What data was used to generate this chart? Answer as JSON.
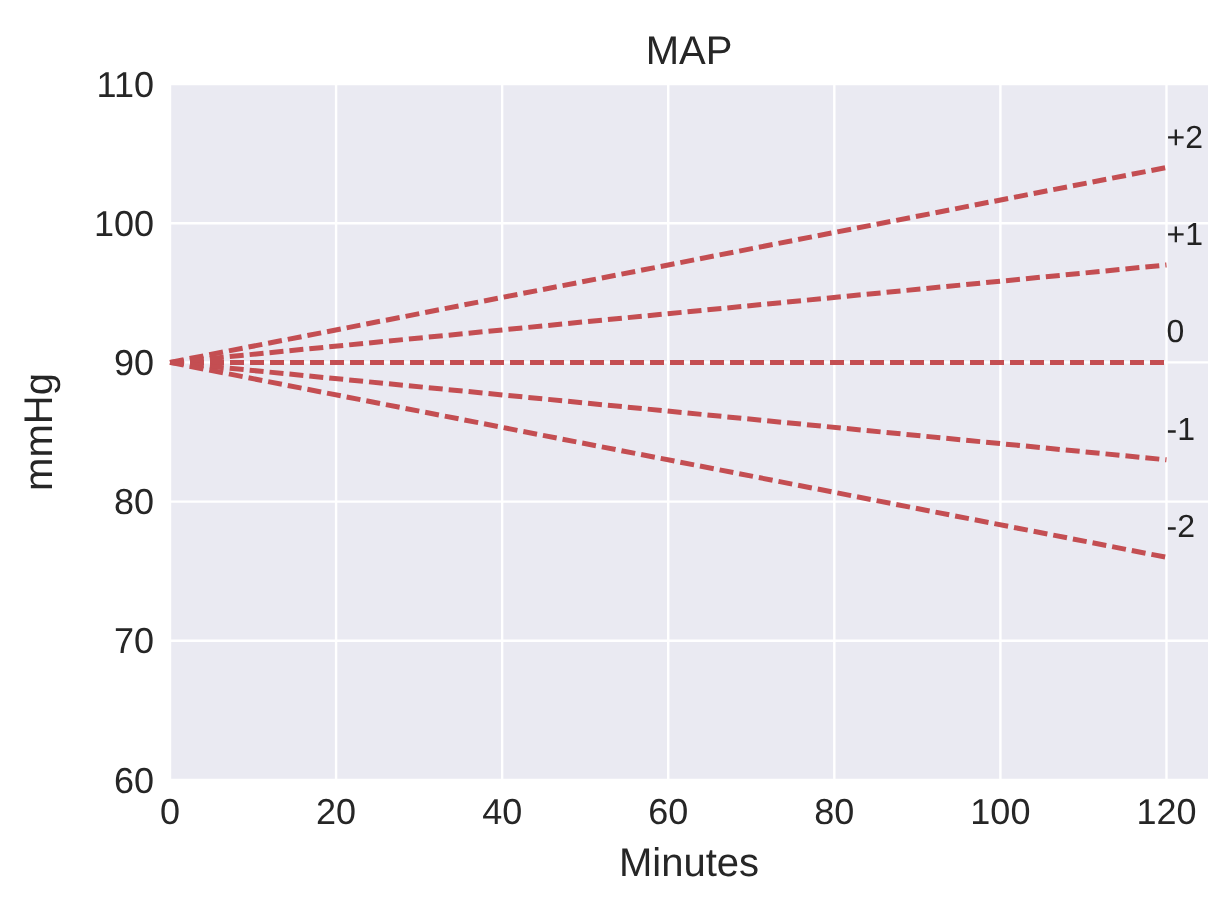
{
  "chart_data": {
    "type": "line",
    "title": "MAP",
    "xlabel": "Minutes",
    "ylabel": "mmHg",
    "x": [
      0,
      120
    ],
    "series": [
      {
        "name": "+2",
        "color": "#c44e52",
        "values": [
          90,
          104
        ]
      },
      {
        "name": "+1",
        "color": "#c44e52",
        "values": [
          90,
          97
        ]
      },
      {
        "name": "0",
        "color": "#c44e52",
        "values": [
          90,
          90
        ]
      },
      {
        "name": "-1",
        "color": "#c44e52",
        "values": [
          90,
          83
        ]
      },
      {
        "name": "-2",
        "color": "#c44e52",
        "values": [
          90,
          76
        ]
      }
    ],
    "xlim": [
      0,
      125
    ],
    "xticks": [
      0,
      20,
      40,
      60,
      80,
      100,
      120
    ],
    "ylim": [
      60,
      110
    ],
    "yticks": [
      60,
      70,
      80,
      90,
      100,
      110
    ],
    "grid": true,
    "line_style": "dashed",
    "marker": "none"
  }
}
